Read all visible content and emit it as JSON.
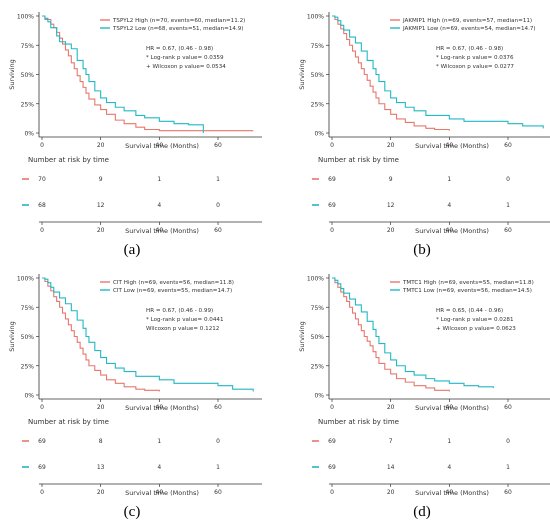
{
  "chart_data": [
    {
      "panel_label": "(a)",
      "type": "line",
      "title": "",
      "xlabel": "Survival time (Months)",
      "ylabel": "Surviving",
      "xticks": [
        "0",
        "20",
        "40",
        "60"
      ],
      "yticks": [
        "100%",
        "75%",
        "50%",
        "25%",
        "0%"
      ],
      "xlim": [
        0,
        75
      ],
      "ylim": [
        0,
        1
      ],
      "legend_position": "top-right",
      "stats": [
        "HR = 0.67, (0.46 - 0.98)",
        "* Log-rank p value= 0.0359",
        "+ Wilcoxon p value= 0.0534"
      ],
      "series": [
        {
          "name": "TSPYL2 High (n=70, events=60, median=11.2)",
          "color": "#e8776e",
          "x": [
            0,
            1,
            3,
            4,
            5,
            6,
            7,
            8,
            9,
            10,
            11,
            12,
            13,
            14,
            15,
            16,
            18,
            20,
            22,
            25,
            28,
            32,
            35,
            40,
            72
          ],
          "y": [
            1.0,
            0.97,
            0.93,
            0.9,
            0.86,
            0.81,
            0.76,
            0.71,
            0.66,
            0.6,
            0.55,
            0.49,
            0.44,
            0.39,
            0.34,
            0.29,
            0.24,
            0.2,
            0.16,
            0.11,
            0.08,
            0.05,
            0.03,
            0.02,
            0.02
          ]
        },
        {
          "name": "TSPYL2 Low (n=68, events=51, median=14.9)",
          "color": "#22b8c4",
          "x": [
            0,
            1,
            2,
            3,
            5,
            6,
            8,
            10,
            12,
            14,
            15,
            16,
            18,
            20,
            22,
            25,
            28,
            32,
            35,
            40,
            45,
            50,
            55
          ],
          "y": [
            1.0,
            0.98,
            0.95,
            0.9,
            0.83,
            0.78,
            0.76,
            0.72,
            0.62,
            0.55,
            0.5,
            0.44,
            0.36,
            0.3,
            0.26,
            0.22,
            0.19,
            0.15,
            0.13,
            0.1,
            0.08,
            0.07,
            0.0
          ]
        }
      ],
      "risk_table": {
        "title": "Number at risk by time",
        "times": [
          "0",
          "20",
          "40",
          "60"
        ],
        "rows": [
          {
            "color": "#e8776e",
            "values": [
              "70",
              "9",
              "1",
              "1"
            ]
          },
          {
            "color": "#22b8c4",
            "values": [
              "68",
              "12",
              "4",
              "0"
            ]
          }
        ]
      }
    },
    {
      "panel_label": "(b)",
      "type": "line",
      "title": "",
      "xlabel": "Survival time (Months)",
      "ylabel": "Surviving",
      "xticks": [
        "0",
        "20",
        "40",
        "60"
      ],
      "yticks": [
        "100%",
        "75%",
        "50%",
        "25%",
        "0%"
      ],
      "xlim": [
        0,
        75
      ],
      "ylim": [
        0,
        1
      ],
      "legend_position": "top-right",
      "stats": [
        "HR = 0.67, (0.46 - 0.98)",
        "* Log-rank p value= 0.0376",
        "* Wilcoxon p value= 0.0277"
      ],
      "series": [
        {
          "name": "JAKMIP1 High (n=69, events=57, median=11)",
          "color": "#e8776e",
          "x": [
            0,
            1,
            2,
            3,
            4,
            5,
            6,
            7,
            8,
            9,
            10,
            11,
            12,
            13,
            14,
            15,
            16,
            18,
            20,
            22,
            25,
            28,
            32,
            35,
            40
          ],
          "y": [
            1.0,
            0.97,
            0.93,
            0.89,
            0.85,
            0.8,
            0.75,
            0.7,
            0.65,
            0.6,
            0.55,
            0.5,
            0.45,
            0.4,
            0.35,
            0.3,
            0.25,
            0.2,
            0.16,
            0.12,
            0.09,
            0.06,
            0.04,
            0.03,
            0.02
          ]
        },
        {
          "name": "JAKMIP1 Low (n=69, events=54, median=14.7)",
          "color": "#22b8c4",
          "x": [
            0,
            1,
            2,
            3,
            4,
            6,
            8,
            10,
            12,
            14,
            15,
            16,
            18,
            20,
            22,
            25,
            28,
            32,
            40,
            45,
            50,
            55,
            60,
            65,
            72
          ],
          "y": [
            1.0,
            0.99,
            0.96,
            0.92,
            0.88,
            0.82,
            0.77,
            0.7,
            0.62,
            0.55,
            0.5,
            0.44,
            0.36,
            0.3,
            0.26,
            0.22,
            0.19,
            0.15,
            0.12,
            0.1,
            0.1,
            0.1,
            0.08,
            0.06,
            0.04
          ]
        }
      ],
      "risk_table": {
        "title": "Number at risk by time",
        "times": [
          "0",
          "20",
          "40",
          "60"
        ],
        "rows": [
          {
            "color": "#e8776e",
            "values": [
              "69",
              "9",
              "1",
              "0"
            ]
          },
          {
            "color": "#22b8c4",
            "values": [
              "69",
              "12",
              "4",
              "1"
            ]
          }
        ]
      }
    },
    {
      "panel_label": "(c)",
      "type": "line",
      "title": "",
      "xlabel": "Survival time (Months)",
      "ylabel": "Surviving",
      "xticks": [
        "0",
        "20",
        "40",
        "60"
      ],
      "yticks": [
        "100%",
        "75%",
        "50%",
        "25%",
        "0%"
      ],
      "xlim": [
        0,
        75
      ],
      "ylim": [
        0,
        1
      ],
      "legend_position": "top-right",
      "stats": [
        "HR = 0.67, (0.46 - 0.99)",
        "* Log-rank p value= 0.0441",
        "Wilcoxon p value= 0.1212"
      ],
      "series": [
        {
          "name": "CIT High (n=69, events=56, median=11.8)",
          "color": "#e8776e",
          "x": [
            0,
            1,
            2,
            3,
            4,
            5,
            6,
            7,
            8,
            9,
            10,
            11,
            12,
            13,
            14,
            15,
            16,
            18,
            20,
            22,
            25,
            28,
            32,
            35,
            40
          ],
          "y": [
            1.0,
            0.97,
            0.93,
            0.89,
            0.84,
            0.8,
            0.75,
            0.7,
            0.65,
            0.6,
            0.55,
            0.5,
            0.45,
            0.4,
            0.35,
            0.3,
            0.25,
            0.21,
            0.17,
            0.13,
            0.1,
            0.07,
            0.05,
            0.04,
            0.03
          ]
        },
        {
          "name": "CIT Low (n=69, events=55, median=14.7)",
          "color": "#22b8c4",
          "x": [
            0,
            1,
            2,
            3,
            4,
            6,
            8,
            10,
            12,
            14,
            15,
            16,
            18,
            20,
            22,
            25,
            28,
            32,
            40,
            45,
            50,
            55,
            60,
            65,
            72
          ],
          "y": [
            1.0,
            0.99,
            0.96,
            0.92,
            0.88,
            0.83,
            0.78,
            0.72,
            0.64,
            0.57,
            0.5,
            0.45,
            0.38,
            0.32,
            0.27,
            0.23,
            0.2,
            0.16,
            0.13,
            0.1,
            0.1,
            0.1,
            0.08,
            0.05,
            0.03
          ]
        }
      ],
      "risk_table": {
        "title": "Number at risk by time",
        "times": [
          "0",
          "20",
          "40",
          "60"
        ],
        "rows": [
          {
            "color": "#e8776e",
            "values": [
              "69",
              "8",
              "1",
              "0"
            ]
          },
          {
            "color": "#22b8c4",
            "values": [
              "69",
              "13",
              "4",
              "1"
            ]
          }
        ]
      }
    },
    {
      "panel_label": "(d)",
      "type": "line",
      "title": "",
      "xlabel": "Survival time (Months)",
      "ylabel": "Surviving",
      "xticks": [
        "0",
        "20",
        "40",
        "60"
      ],
      "yticks": [
        "100%",
        "75%",
        "50%",
        "25%",
        "0%"
      ],
      "xlim": [
        0,
        75
      ],
      "ylim": [
        0,
        1
      ],
      "legend_position": "top-right",
      "stats": [
        "HR = 0.65, (0.44 - 0.96)",
        "* Log-rank p value= 0.0281",
        "+ Wilcoxon p value= 0.0623"
      ],
      "series": [
        {
          "name": "TMTC1 High (n=69, events=55, median=11.8)",
          "color": "#e8776e",
          "x": [
            0,
            1,
            2,
            3,
            4,
            5,
            6,
            7,
            8,
            9,
            10,
            11,
            12,
            13,
            14,
            15,
            16,
            18,
            20,
            22,
            25,
            28,
            32,
            35,
            40
          ],
          "y": [
            1.0,
            0.96,
            0.92,
            0.88,
            0.84,
            0.8,
            0.75,
            0.7,
            0.65,
            0.6,
            0.55,
            0.5,
            0.46,
            0.42,
            0.37,
            0.32,
            0.27,
            0.22,
            0.18,
            0.14,
            0.11,
            0.08,
            0.06,
            0.04,
            0.03
          ]
        },
        {
          "name": "TMTC1 Low (n=69, events=56, median=14.5)",
          "color": "#22b8c4",
          "x": [
            0,
            1,
            2,
            3,
            4,
            6,
            8,
            10,
            12,
            14,
            15,
            16,
            18,
            20,
            22,
            25,
            28,
            32,
            35,
            40,
            45,
            50,
            55
          ],
          "y": [
            1.0,
            0.98,
            0.95,
            0.91,
            0.87,
            0.82,
            0.77,
            0.71,
            0.63,
            0.56,
            0.5,
            0.44,
            0.36,
            0.3,
            0.25,
            0.2,
            0.17,
            0.14,
            0.12,
            0.1,
            0.08,
            0.07,
            0.06
          ]
        }
      ],
      "risk_table": {
        "title": "Number at risk by time",
        "times": [
          "0",
          "20",
          "40",
          "60"
        ],
        "rows": [
          {
            "color": "#e8776e",
            "values": [
              "69",
              "7",
              "1",
              "0"
            ]
          },
          {
            "color": "#22b8c4",
            "values": [
              "69",
              "14",
              "4",
              "1"
            ]
          }
        ]
      }
    }
  ]
}
